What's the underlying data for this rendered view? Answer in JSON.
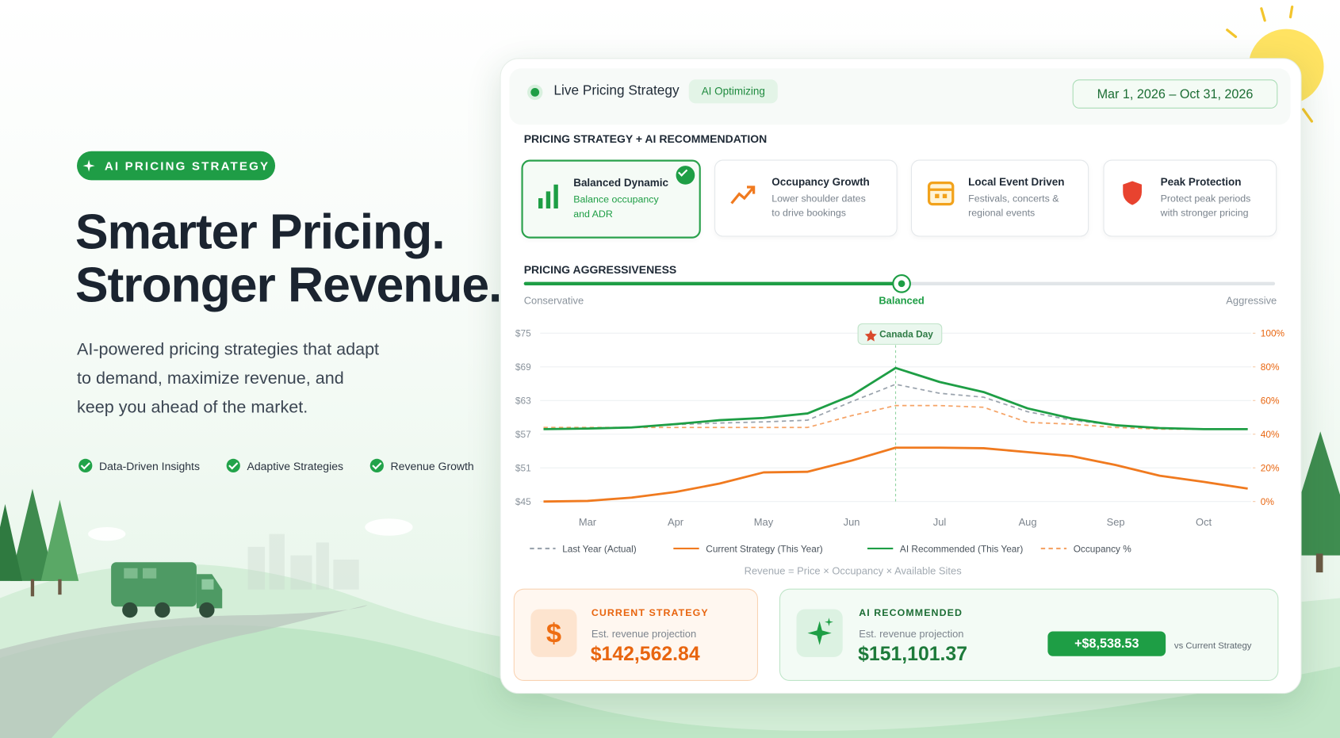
{
  "hero": {
    "badge": "AI PRICING STRATEGY",
    "title_lines": [
      "Smarter Pricing.",
      "Stronger Revenue."
    ],
    "description_lines": [
      "AI-powered pricing strategies that adapt",
      "to demand, maximize revenue, and",
      "keep you ahead of the market."
    ],
    "features": [
      "Data-Driven Insights",
      "Adaptive Strategies",
      "Revenue Growth"
    ]
  },
  "panel": {
    "title": "Live Pricing Strategy",
    "status": "AI Optimizing",
    "date_range": "Mar 1, 2026 – Oct 31, 2026",
    "strategy_heading": "PRICING STRATEGY + AI RECOMMENDATION",
    "strategies": [
      {
        "title": "Balanced Dynamic",
        "description_lines": [
          "Balance occupancy",
          "and ADR"
        ]
      },
      {
        "title": "Occupancy Growth",
        "description_lines": [
          "Lower shoulder dates",
          "to drive bookings"
        ]
      },
      {
        "title": "Local Event Driven",
        "description_lines": [
          "Festivals, concerts &",
          "regional events"
        ]
      },
      {
        "title": "Peak Protection",
        "description_lines": [
          "Protect peak periods",
          "with stronger pricing"
        ]
      }
    ],
    "aggressiveness": {
      "heading": "PRICING AGGRESSIVENESS",
      "labels": [
        "Conservative",
        "Balanced",
        "Aggressive"
      ]
    },
    "formula": "Revenue = Price × Occupancy × Available Sites",
    "current": {
      "icon": "$",
      "label": "CURRENT STRATEGY",
      "caption": "Est. revenue projection",
      "value": "$142,562.84"
    },
    "recommended": {
      "label": "AI RECOMMENDED",
      "caption": "Est. revenue projection",
      "value": "$151,101.37",
      "difference": "+$8,538.53",
      "difference_caption": "vs Current Strategy"
    }
  },
  "chart_data": {
    "type": "line",
    "annotation": "Canada Day",
    "categories": [
      null,
      "Mar",
      null,
      "Apr",
      null,
      "May",
      null,
      "Jun",
      null,
      "Jul",
      null,
      "Aug",
      null,
      "Sep",
      null,
      "Oct",
      null
    ],
    "series": [
      {
        "name": "Occupancy %",
        "color": "#f5a366",
        "line_style": "dashed",
        "axis": "y2",
        "values": [
          44,
          44,
          44,
          44,
          44,
          44,
          44,
          51,
          57,
          57,
          56,
          47,
          46,
          44,
          43,
          43,
          43
        ]
      },
      {
        "name": "Last Year (Actual)",
        "color": "#9aa3ad",
        "line_style": "dashed",
        "values": [
          57.9,
          58.0,
          58.2,
          58.7,
          59.0,
          59.2,
          59.5,
          62.8,
          65.9,
          64.3,
          63.6,
          61.0,
          59.5,
          58.6,
          58.0,
          57.9,
          57.9
        ]
      },
      {
        "name": "Current Strategy (This Year)",
        "color": "#f07a1f",
        "line_style": "solid",
        "values": [
          45.0,
          45.1,
          45.7,
          46.7,
          48.2,
          50.2,
          50.3,
          52.3,
          54.6,
          54.6,
          54.5,
          53.8,
          53.1,
          51.5,
          49.6,
          48.5,
          47.3
        ]
      },
      {
        "name": "AI Recommended (This Year)",
        "color": "#1e9e45",
        "line_style": "solid",
        "values": [
          57.9,
          58.0,
          58.2,
          58.8,
          59.5,
          59.9,
          60.7,
          63.9,
          68.8,
          66.3,
          64.5,
          61.6,
          59.8,
          58.6,
          58.1,
          57.9,
          57.9
        ]
      }
    ],
    "ylim": [
      45,
      75
    ],
    "yticks": [
      {
        "value": 45,
        "label": "$45"
      },
      {
        "value": 51,
        "label": "$51"
      },
      {
        "value": 57,
        "label": "$57"
      },
      {
        "value": 63,
        "label": "$63"
      },
      {
        "value": 69,
        "label": "$69"
      },
      {
        "value": 75,
        "label": "$75"
      }
    ],
    "y2lim": [
      0,
      100
    ],
    "y2ticks": [
      {
        "value": 0,
        "label": "0%"
      },
      {
        "value": 20,
        "label": "20%"
      },
      {
        "value": 40,
        "label": "40%"
      },
      {
        "value": 60,
        "label": "60%"
      },
      {
        "value": 80,
        "label": "80%"
      },
      {
        "value": 100,
        "label": "100%"
      }
    ],
    "grid": true
  }
}
